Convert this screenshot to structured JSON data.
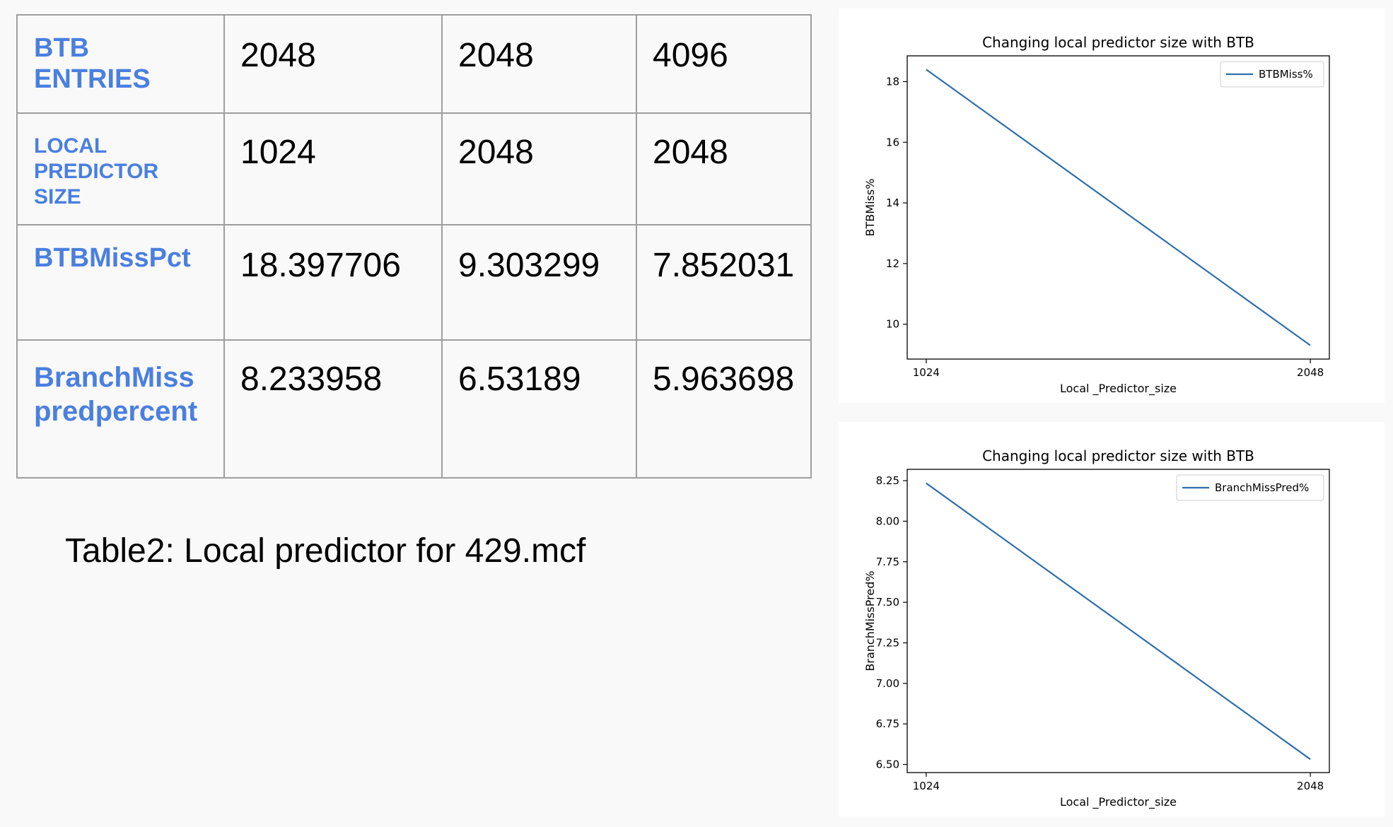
{
  "table": {
    "rows": [
      {
        "header": "BTB ENTRIES",
        "values": [
          "2048",
          "2048",
          "4096"
        ]
      },
      {
        "header": "LOCAL PREDICTOR SIZE",
        "values": [
          "1024",
          "2048",
          "2048"
        ]
      },
      {
        "header": "BTBMissPct",
        "values": [
          "18.397706",
          "9.303299",
          "7.852031"
        ]
      },
      {
        "header": "BranchMiss predpercent",
        "values": [
          "8.233958",
          "6.53189",
          "5.963698"
        ]
      }
    ]
  },
  "caption": "Table2: Local predictor for 429.mcf",
  "chart_data": [
    {
      "type": "line",
      "title": "Changing local predictor size with BTB",
      "xlabel": "Local _Predictor_size",
      "ylabel": "BTBMiss%",
      "categories": [
        "1024",
        "2048"
      ],
      "series": [
        {
          "name": "BTBMiss%",
          "values": [
            18.397706,
            9.303299
          ]
        }
      ],
      "yticks": [
        10,
        12,
        14,
        16,
        18
      ],
      "ylim": [
        8.85,
        18.85
      ],
      "legend": "upper right",
      "line_color": "#2f6fab"
    },
    {
      "type": "line",
      "title": "Changing local predictor size with BTB",
      "xlabel": "Local _Predictor_size",
      "ylabel": "BranchMissPred%",
      "categories": [
        "1024",
        "2048"
      ],
      "series": [
        {
          "name": "BranchMissPred%",
          "values": [
            8.233958,
            6.53189
          ]
        }
      ],
      "yticks": [
        6.5,
        6.75,
        7.0,
        7.25,
        7.5,
        7.75,
        8.0,
        8.25
      ],
      "ytick_labels": [
        "6.50",
        "6.75",
        "7.00",
        "7.25",
        "7.50",
        "7.75",
        "8.00",
        "8.25"
      ],
      "ylim": [
        6.45,
        8.32
      ],
      "legend": "upper right",
      "line_color": "#2f6fab"
    }
  ]
}
